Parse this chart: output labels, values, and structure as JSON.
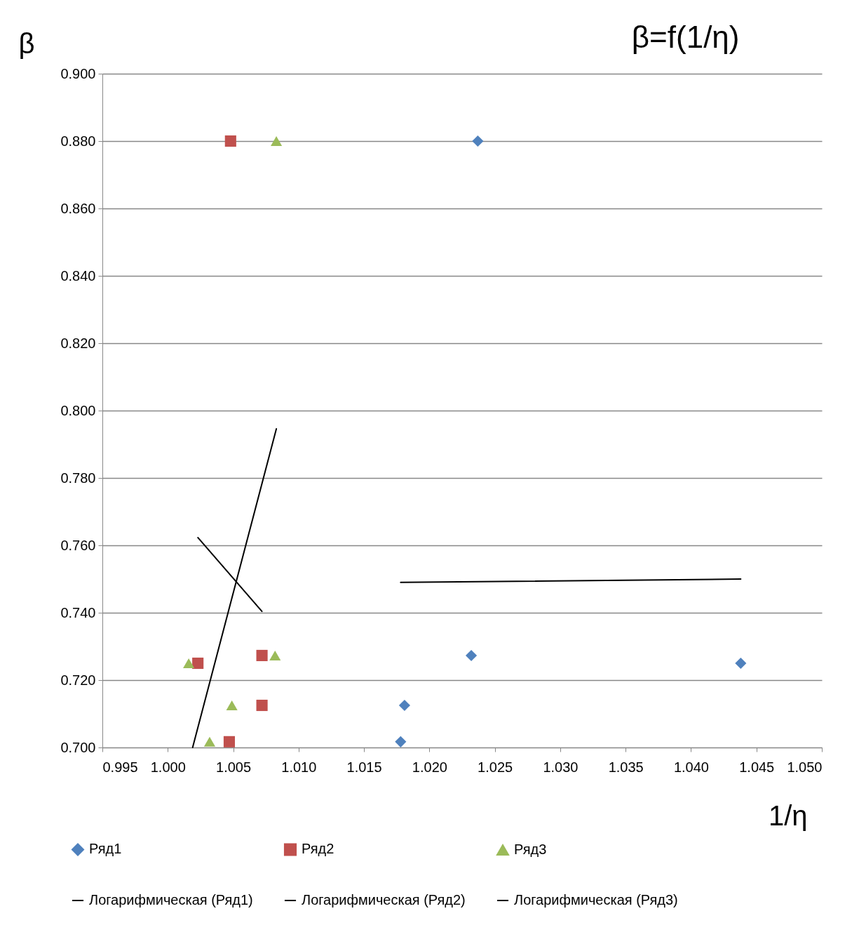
{
  "chart_data": {
    "type": "scatter",
    "title": "β=f(1/η)",
    "xlabel": "1/η",
    "ylabel": "β",
    "xlim": [
      0.995,
      1.05
    ],
    "xticks": [
      {
        "value": 0.995,
        "label": "0.995"
      },
      {
        "value": 1.0,
        "label": "1.000"
      },
      {
        "value": 1.005,
        "label": "1.005"
      },
      {
        "value": 1.01,
        "label": "1.010"
      },
      {
        "value": 1.015,
        "label": "1.015"
      },
      {
        "value": 1.02,
        "label": "1.020"
      },
      {
        "value": 1.025,
        "label": "1.025"
      },
      {
        "value": 1.03,
        "label": "1.030"
      },
      {
        "value": 1.035,
        "label": "1.035"
      },
      {
        "value": 1.04,
        "label": "1.040"
      },
      {
        "value": 1.045,
        "label": "1.045"
      },
      {
        "value": 1.05,
        "label": "1.050"
      }
    ],
    "ylim": [
      0.7,
      0.9
    ],
    "yticks": [
      {
        "value": 0.7,
        "label": "0.700"
      },
      {
        "value": 0.72,
        "label": "0.720"
      },
      {
        "value": 0.74,
        "label": "0.740"
      },
      {
        "value": 0.76,
        "label": "0.760"
      },
      {
        "value": 0.78,
        "label": "0.780"
      },
      {
        "value": 0.8,
        "label": "0.800"
      },
      {
        "value": 0.82,
        "label": "0.820"
      },
      {
        "value": 0.84,
        "label": "0.840"
      },
      {
        "value": 0.86,
        "label": "0.860"
      },
      {
        "value": 0.88,
        "label": "0.880"
      },
      {
        "value": 0.9,
        "label": "0.900"
      }
    ],
    "grid": "y",
    "legend": "bottom",
    "series": [
      {
        "name": "Ряд1",
        "type": "scatter",
        "marker": "diamond",
        "color": "#4f81bd",
        "x": [
          1.0237,
          1.0232,
          1.0181,
          1.0178,
          1.0438
        ],
        "values": [
          0.88,
          0.7273,
          0.7125,
          0.7017,
          0.725
        ]
      },
      {
        "name": "Ряд2",
        "type": "scatter",
        "marker": "square",
        "color": "#c0504d",
        "x": [
          1.0048,
          1.0023,
          1.0072,
          1.0072,
          1.0047
        ],
        "values": [
          0.88,
          0.725,
          0.7273,
          0.7125,
          0.7017
        ]
      },
      {
        "name": "Ряд3",
        "type": "scatter",
        "marker": "triangle",
        "color": "#9bbb59",
        "x": [
          1.0083,
          1.0016,
          1.0082,
          1.0049,
          1.0032
        ],
        "values": [
          0.88,
          0.725,
          0.7273,
          0.7125,
          0.7017
        ]
      },
      {
        "name": "Логарифмическая (Ряд1)",
        "type": "line",
        "marker": "none",
        "color": "#000000",
        "x": [
          1.0178,
          1.0438
        ],
        "values": [
          0.749,
          0.75
        ]
      },
      {
        "name": "Логарифмическая (Ряд2)",
        "type": "line",
        "marker": "none",
        "color": "#000000",
        "x": [
          1.0023,
          1.0072
        ],
        "values": [
          0.7623,
          0.7404
        ]
      },
      {
        "name": "Логарифмическая (Ряд3)",
        "type": "line",
        "marker": "none",
        "color": "#000000",
        "x": [
          1.0019,
          1.0083
        ],
        "values": [
          0.7,
          0.7946
        ]
      }
    ]
  }
}
